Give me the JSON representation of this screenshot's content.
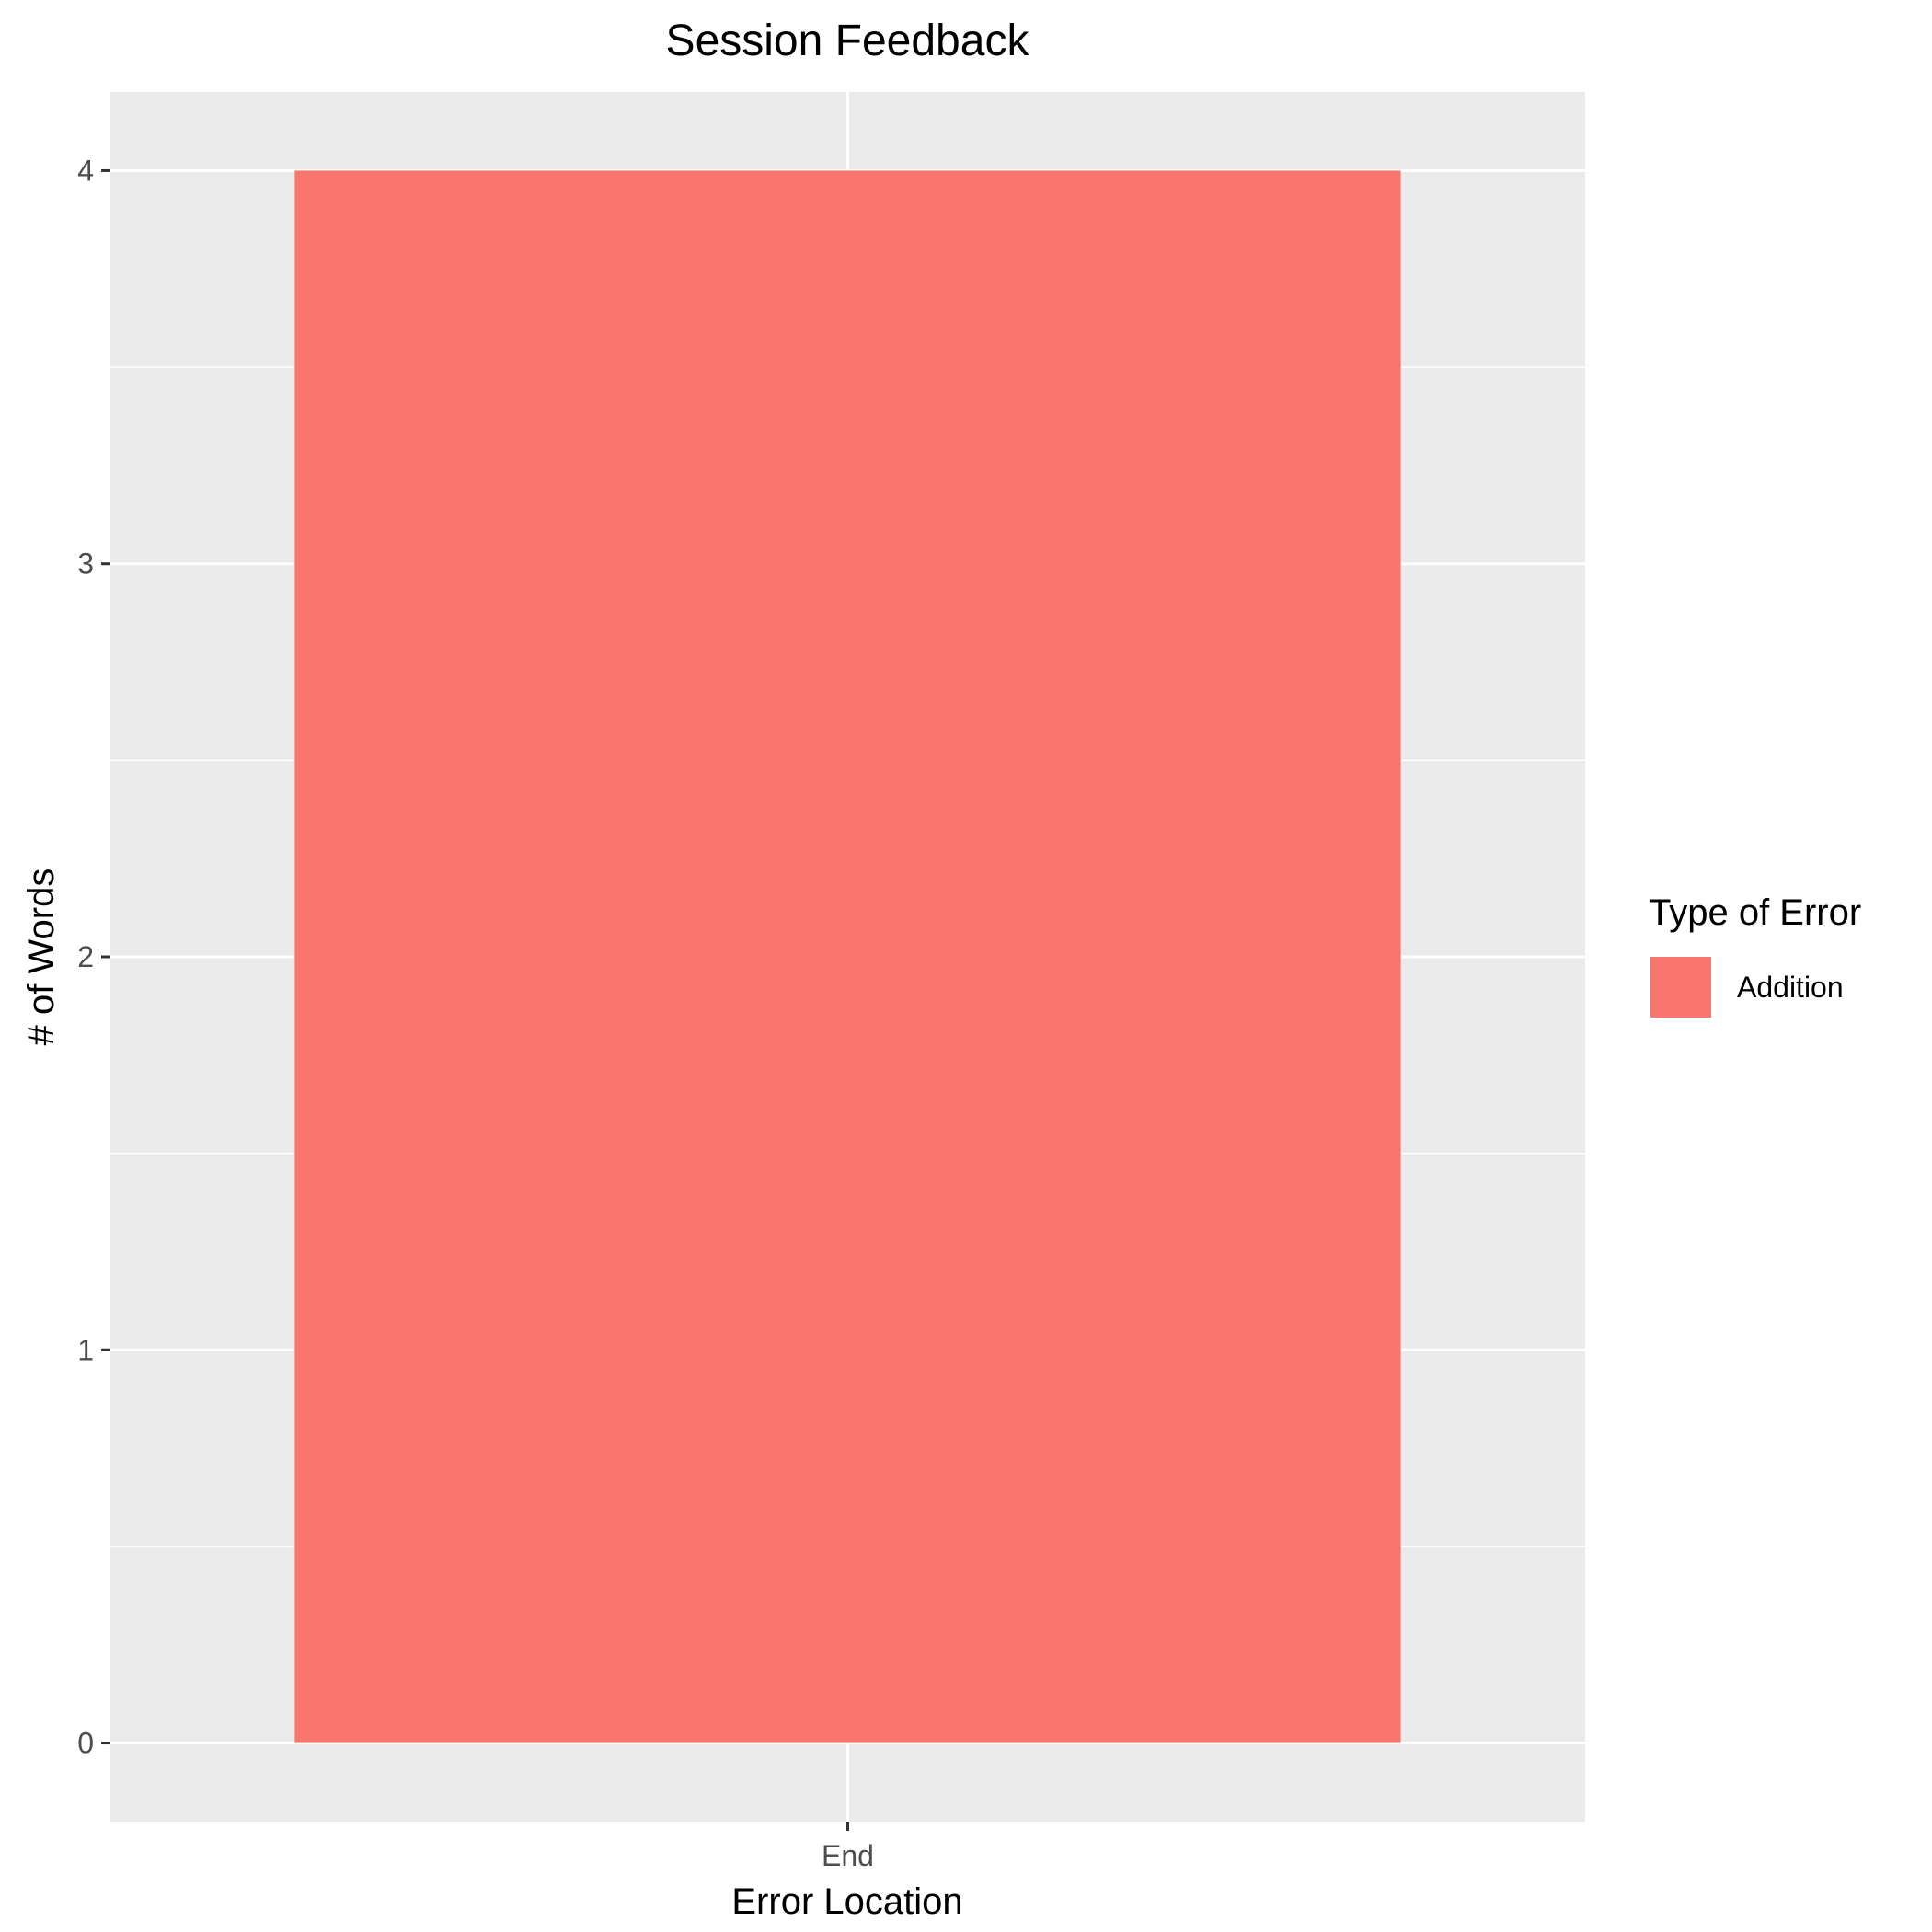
{
  "chart_data": {
    "type": "bar",
    "title": "Session Feedback",
    "xlabel": "Error Location",
    "ylabel": "# of Words",
    "categories": [
      "End"
    ],
    "series": [
      {
        "name": "Addition",
        "values": [
          4
        ],
        "color": "#F8766D"
      }
    ],
    "ylim": [
      -0.2,
      4.2
    ],
    "yticks": [
      0,
      1,
      2,
      3,
      4
    ],
    "grid": true,
    "panel_background": "#EBEBEB",
    "grid_color": "#FFFFFF",
    "legend": {
      "title": "Type of Error",
      "placement": "right"
    }
  }
}
